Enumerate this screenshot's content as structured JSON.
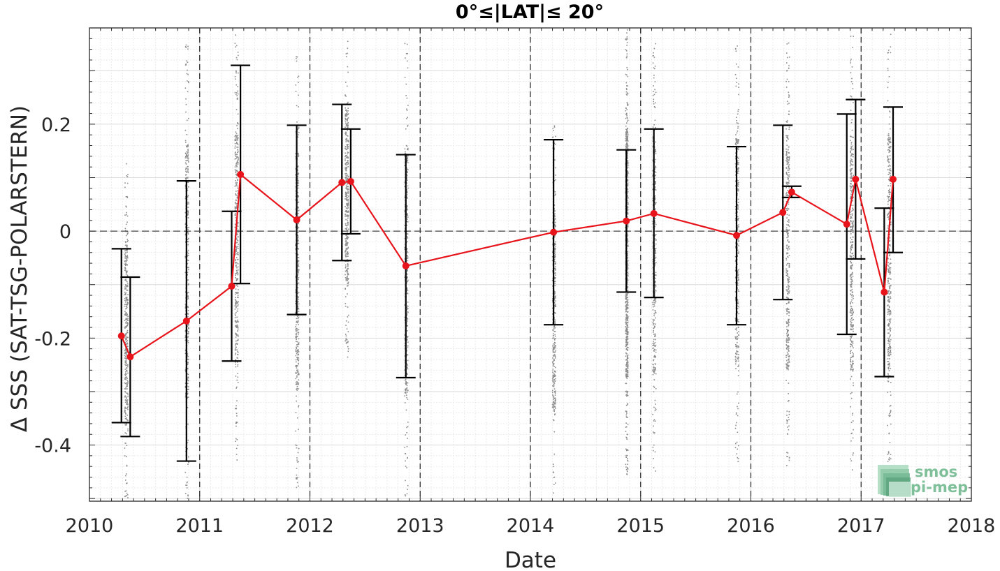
{
  "chart_data": {
    "type": "scatter",
    "title": "0°≤|LAT|≤ 20°",
    "xlabel": "Date",
    "ylabel": "Δ SSS (SAT-TSG-POLARSTERN)",
    "xlim": [
      2010,
      2018
    ],
    "ylim": [
      -0.505,
      0.38
    ],
    "x_ticks": [
      "2010",
      "2011",
      "2012",
      "2013",
      "2014",
      "2015",
      "2016",
      "2017",
      "2018"
    ],
    "y_ticks": [
      {
        "value": -0.4,
        "label": "-0.4"
      },
      {
        "value": -0.2,
        "label": "-0.2"
      },
      {
        "value": 0,
        "label": "0"
      },
      {
        "value": 0.2,
        "label": "0.2"
      }
    ],
    "year_boundaries": [
      2011,
      2012,
      2013,
      2014,
      2015,
      2016,
      2017
    ],
    "zero_line": 0,
    "grid": true,
    "series": [
      {
        "color": "#e8141b",
        "points": [
          {
            "x": 2010.29,
            "y": -0.196,
            "low": -0.358,
            "high": -0.033
          },
          {
            "x": 2010.37,
            "y": -0.235,
            "low": -0.384,
            "high": -0.086
          },
          {
            "x": 2010.88,
            "y": -0.168,
            "low": -0.43,
            "high": 0.094
          },
          {
            "x": 2011.29,
            "y": -0.103,
            "low": -0.243,
            "high": 0.037
          },
          {
            "x": 2011.37,
            "y": 0.106,
            "low": -0.098,
            "high": 0.31
          },
          {
            "x": 2011.88,
            "y": 0.021,
            "low": -0.156,
            "high": 0.198
          },
          {
            "x": 2012.29,
            "y": 0.091,
            "low": -0.055,
            "high": 0.237
          },
          {
            "x": 2012.37,
            "y": 0.093,
            "low": -0.005,
            "high": 0.191
          },
          {
            "x": 2012.87,
            "y": -0.065,
            "low": -0.274,
            "high": 0.143
          },
          {
            "x": 2014.21,
            "y": -0.002,
            "low": -0.175,
            "high": 0.171
          },
          {
            "x": 2014.87,
            "y": 0.019,
            "low": -0.114,
            "high": 0.152
          },
          {
            "x": 2015.12,
            "y": 0.033,
            "low": -0.124,
            "high": 0.191
          },
          {
            "x": 2015.87,
            "y": -0.008,
            "low": -0.175,
            "high": 0.158
          },
          {
            "x": 2016.29,
            "y": 0.035,
            "low": -0.128,
            "high": 0.198
          },
          {
            "x": 2016.37,
            "y": 0.073,
            "low": 0.063,
            "high": 0.084
          },
          {
            "x": 2016.87,
            "y": 0.013,
            "low": -0.193,
            "high": 0.219
          },
          {
            "x": 2016.95,
            "y": 0.097,
            "low": -0.052,
            "high": 0.246
          },
          {
            "x": 2017.21,
            "y": -0.114,
            "low": -0.272,
            "high": 0.043
          },
          {
            "x": 2017.29,
            "y": 0.097,
            "low": -0.04,
            "high": 0.232
          }
        ]
      }
    ],
    "scatter_clouds": [
      {
        "x": 2010.33,
        "ymin": -0.505,
        "ymax": 0.13
      },
      {
        "x": 2010.88,
        "ymin": -0.505,
        "ymax": 0.36
      },
      {
        "x": 2011.33,
        "ymin": -0.43,
        "ymax": 0.37
      },
      {
        "x": 2011.88,
        "ymin": -0.48,
        "ymax": 0.33
      },
      {
        "x": 2012.33,
        "ymin": -0.24,
        "ymax": 0.37
      },
      {
        "x": 2012.87,
        "ymin": -0.505,
        "ymax": 0.36
      },
      {
        "x": 2014.21,
        "ymin": -0.49,
        "ymax": 0.2
      },
      {
        "x": 2014.87,
        "ymin": -0.46,
        "ymax": 0.38
      },
      {
        "x": 2015.12,
        "ymin": -0.45,
        "ymax": 0.36
      },
      {
        "x": 2015.87,
        "ymin": -0.43,
        "ymax": 0.35
      },
      {
        "x": 2016.33,
        "ymin": -0.44,
        "ymax": 0.36
      },
      {
        "x": 2016.91,
        "ymin": -0.45,
        "ymax": 0.37
      },
      {
        "x": 2017.25,
        "ymin": -0.46,
        "ymax": 0.37
      }
    ],
    "logo": {
      "line1": "smos",
      "line2": "pi-mep"
    }
  },
  "colors": {
    "mean_line": "#e8141b",
    "error_bar": "#000000",
    "scatter": "#8c8c8c",
    "grid": "#e3e3e3",
    "logo": "#7fbf9a"
  }
}
